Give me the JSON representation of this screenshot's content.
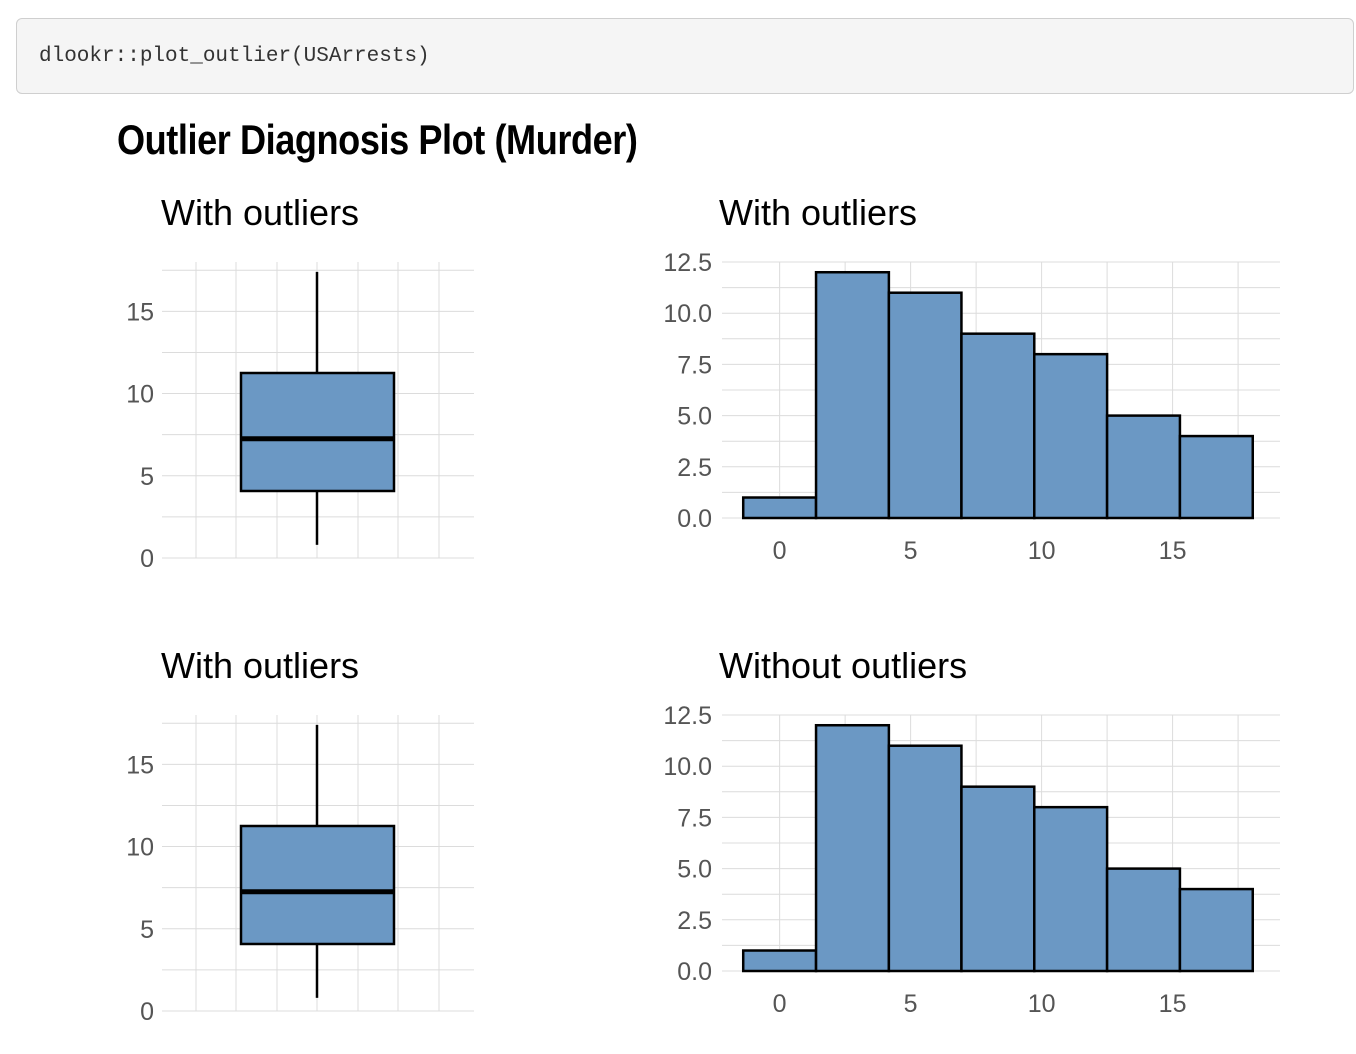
{
  "code": "dlookr::plot_outlier(USArrests)",
  "title": "Outlier Diagnosis Plot (Murder)",
  "colors": {
    "fill": "#6b98c4",
    "stroke": "#000000",
    "grid": "#dcdcdc",
    "tick_text": "#555555"
  },
  "chart_data": [
    {
      "type": "boxplot",
      "title": "With outliers",
      "ylim": [
        0,
        18
      ],
      "yticks": [
        "0",
        "5",
        "10",
        "15"
      ],
      "yticks_values": [
        0,
        5,
        10,
        15
      ],
      "box": {
        "min": 0.8,
        "q1": 4.075,
        "median": 7.25,
        "q3": 11.25,
        "max": 17.4
      },
      "grid": true
    },
    {
      "type": "bar",
      "title": "With outliers",
      "xlim": [
        -2.2,
        19.1
      ],
      "ylim": [
        0,
        12.5
      ],
      "xticks": [
        "0",
        "5",
        "10",
        "15"
      ],
      "xticks_values": [
        0,
        5,
        10,
        15
      ],
      "yticks": [
        "0.0",
        "2.5",
        "5.0",
        "7.5",
        "10.0",
        "12.5"
      ],
      "yticks_values": [
        0,
        2.5,
        5,
        7.5,
        10,
        12.5
      ],
      "bin_edges": [
        -1.39,
        1.39,
        4.17,
        6.94,
        9.72,
        12.5,
        15.28,
        18.06
      ],
      "values": [
        1,
        12,
        11,
        9,
        8,
        5,
        4
      ],
      "grid": true
    },
    {
      "type": "boxplot",
      "title": "With outliers",
      "ylim": [
        0,
        18
      ],
      "yticks": [
        "0",
        "5",
        "10",
        "15"
      ],
      "yticks_values": [
        0,
        5,
        10,
        15
      ],
      "box": {
        "min": 0.8,
        "q1": 4.075,
        "median": 7.25,
        "q3": 11.25,
        "max": 17.4
      },
      "grid": true
    },
    {
      "type": "bar",
      "title": "Without outliers",
      "xlim": [
        -2.2,
        19.1
      ],
      "ylim": [
        0,
        12.5
      ],
      "xticks": [
        "0",
        "5",
        "10",
        "15"
      ],
      "xticks_values": [
        0,
        5,
        10,
        15
      ],
      "yticks": [
        "0.0",
        "2.5",
        "5.0",
        "7.5",
        "10.0",
        "12.5"
      ],
      "yticks_values": [
        0,
        2.5,
        5,
        7.5,
        10,
        12.5
      ],
      "bin_edges": [
        -1.39,
        1.39,
        4.17,
        6.94,
        9.72,
        12.5,
        15.28,
        18.06
      ],
      "values": [
        1,
        12,
        11,
        9,
        8,
        5,
        4
      ],
      "grid": true
    }
  ]
}
